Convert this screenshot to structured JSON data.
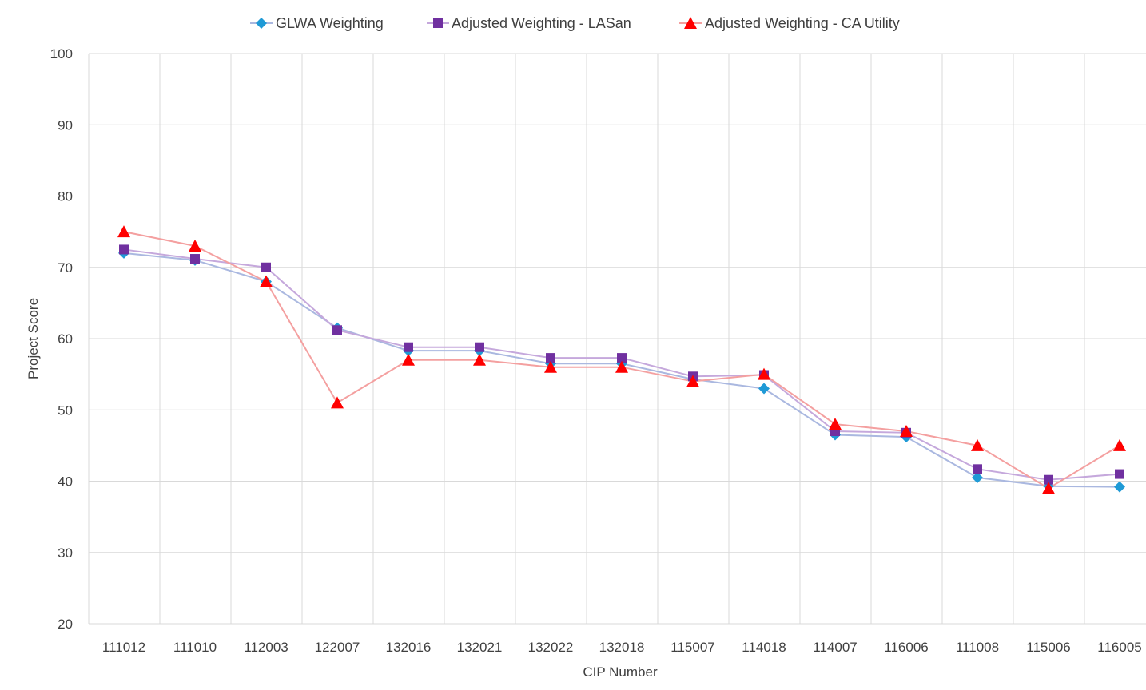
{
  "chart_data": {
    "type": "line",
    "title": "",
    "xlabel": "CIP Number",
    "ylabel": "Project Score",
    "ylim": [
      20,
      100
    ],
    "yticks": [
      20,
      30,
      40,
      50,
      60,
      70,
      80,
      90,
      100
    ],
    "grid": true,
    "legend_position": "top",
    "categories": [
      "111012",
      "111010",
      "112003",
      "122007",
      "132016",
      "132021",
      "132022",
      "132018",
      "115007",
      "114018",
      "114007",
      "116006",
      "111008",
      "115006",
      "116005"
    ],
    "series": [
      {
        "name": "GLWA Weighting",
        "marker": "diamond",
        "marker_color": "#1f9ad6",
        "line_color": "#aab8e0",
        "values": [
          72,
          71,
          68,
          61.5,
          58.3,
          58.3,
          56.5,
          56.5,
          54.3,
          53,
          46.5,
          46.2,
          40.5,
          39.3,
          39.2
        ]
      },
      {
        "name": "Adjusted Weighting - LASan",
        "marker": "square",
        "marker_color": "#7030a0",
        "line_color": "#c5a8dc",
        "values": [
          72.5,
          71.2,
          70,
          61.2,
          58.8,
          58.8,
          57.3,
          57.3,
          54.7,
          54.9,
          47,
          46.8,
          41.7,
          40.2,
          41
        ]
      },
      {
        "name": "Adjusted Weighting - CA Utility",
        "marker": "triangle",
        "marker_color": "#ff0000",
        "line_color": "#f4a0a0",
        "values": [
          75,
          73,
          68,
          51,
          57,
          57,
          56,
          56,
          54,
          55,
          48,
          47,
          45,
          39,
          45
        ]
      }
    ]
  }
}
